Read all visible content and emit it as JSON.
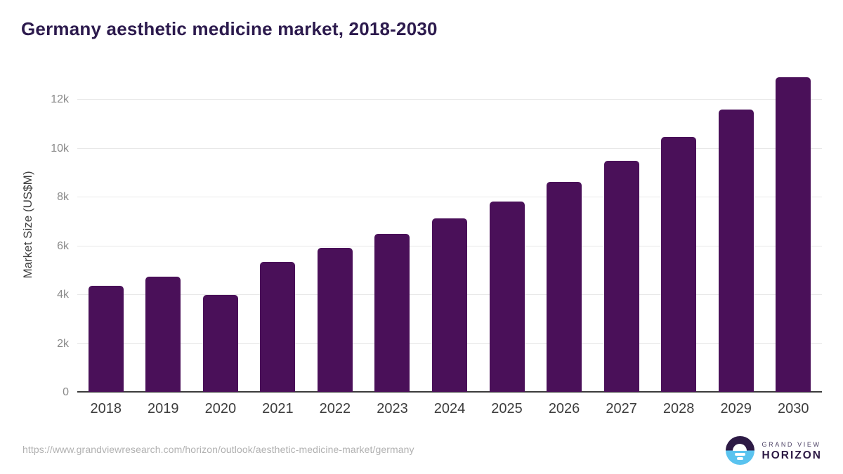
{
  "header": {
    "title": "Germany aesthetic medicine market, 2018-2030"
  },
  "footer": {
    "source_url": "https://www.grandviewresearch.com/horizon/outlook/aesthetic-medicine-market/germany",
    "logo": {
      "line1": "GRAND VIEW",
      "line2": "HORIZON"
    }
  },
  "colors": {
    "bar": "#4a1059",
    "title": "#2c1a4d",
    "axis_title": "#3d3d3d",
    "y_tick_label": "#8a8a8a",
    "x_tick_label": "#3d3d3d",
    "gridline": "#e8e8e8",
    "baseline": "#3c3c3c",
    "source_text": "#b1b1b1",
    "logo_purple": "#2d1a45",
    "logo_blue": "#5ac3ef"
  },
  "icons": {
    "logo_mark": "sunrise-over-water-icon"
  },
  "chart_data": {
    "type": "bar",
    "title": "Germany aesthetic medicine market, 2018-2030",
    "categories": [
      "2018",
      "2019",
      "2020",
      "2021",
      "2022",
      "2023",
      "2024",
      "2025",
      "2026",
      "2027",
      "2028",
      "2029",
      "2030"
    ],
    "values": [
      4350,
      4720,
      3960,
      5320,
      5900,
      6480,
      7110,
      7800,
      8610,
      9470,
      10450,
      11570,
      12890
    ],
    "xlabel": "",
    "ylabel": "Market Size (US$M)",
    "ylim": [
      0,
      13000
    ],
    "yticks": [
      {
        "value": 0,
        "label": "0"
      },
      {
        "value": 2000,
        "label": "2k"
      },
      {
        "value": 4000,
        "label": "4k"
      },
      {
        "value": 6000,
        "label": "6k"
      },
      {
        "value": 8000,
        "label": "8k"
      },
      {
        "value": 10000,
        "label": "10k"
      },
      {
        "value": 12000,
        "label": "12k"
      }
    ],
    "grid": "horizontal",
    "legend_position": "none",
    "bar_color": "#4a1059"
  }
}
